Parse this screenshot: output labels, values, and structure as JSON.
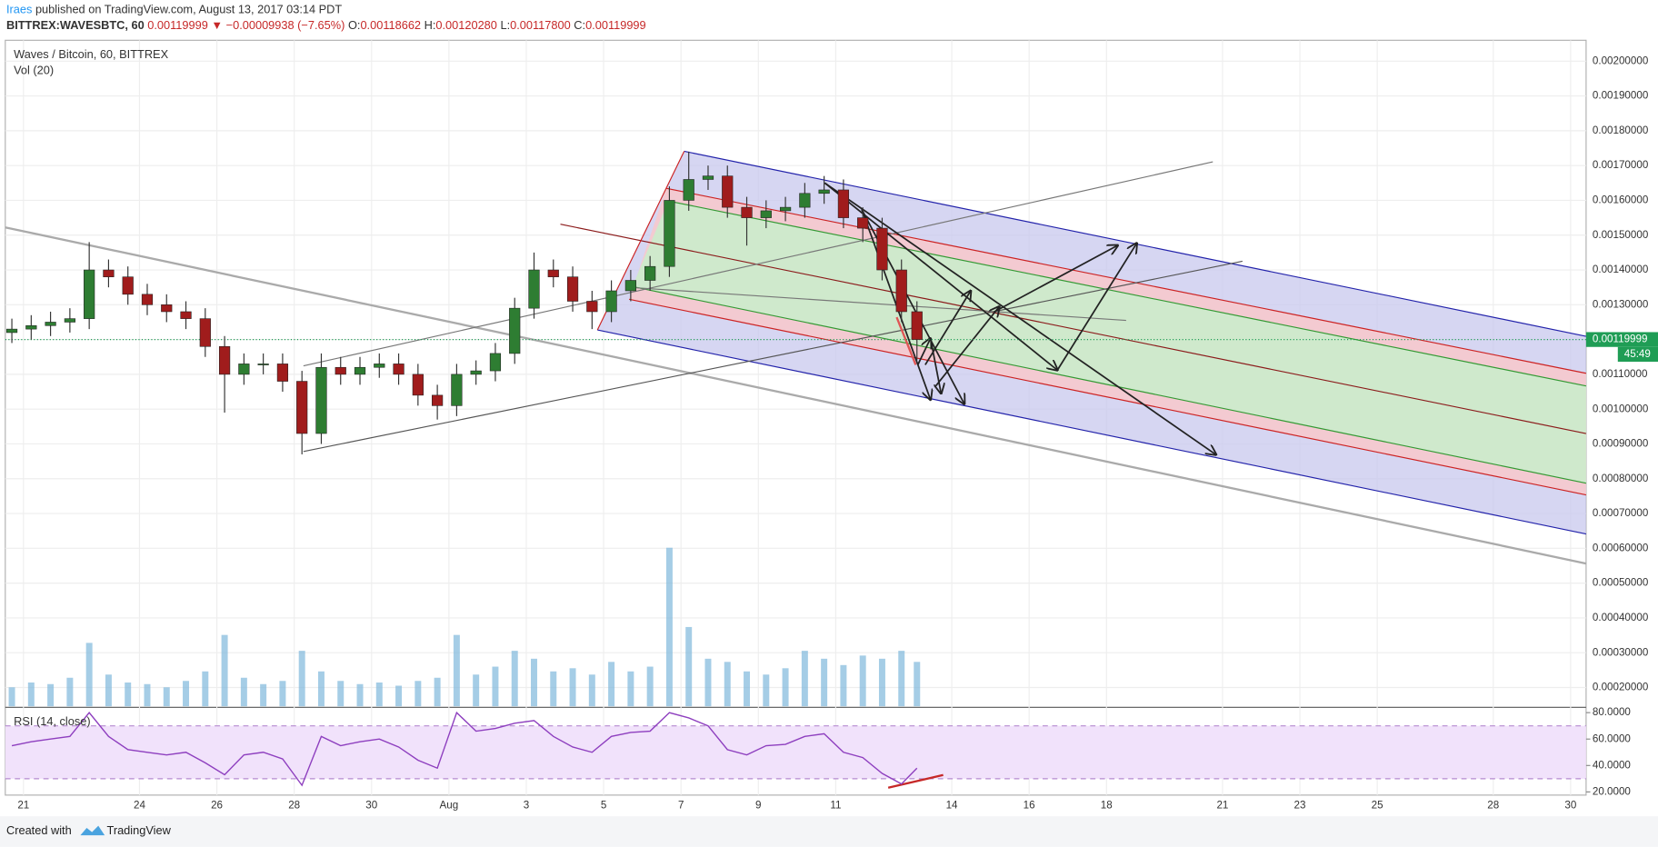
{
  "header": {
    "publisher": "Iraes",
    "published_text": " published on TradingView.com, August 13, 2017 03:14 PDT",
    "symbol": "BITTREX:WAVESBTC, 60",
    "last": "0.00119999",
    "arrow": "▼",
    "change": "−0.00009938 (−7.65%)",
    "o_label": "O:",
    "open": "0.00118662",
    "h_label": "H:",
    "high": "0.00120280",
    "l_label": "L:",
    "low": "0.00117800",
    "c_label": "C:",
    "close": "0.00119999"
  },
  "chart_data": {
    "type": "candlestick",
    "title": "Waves / Bitcoin, 60, BITTREX",
    "volume_label": "Vol (20)",
    "up_color": "#2e7d32",
    "down_color": "#a01c1c",
    "volume_color": "#7fb8dc",
    "x": [
      20.7,
      21.2,
      21.7,
      22.2,
      22.7,
      23.2,
      23.7,
      24.2,
      24.7,
      25.2,
      25.7,
      26.2,
      26.7,
      27.2,
      27.7,
      28.2,
      28.7,
      29.2,
      29.7,
      30.2,
      30.7,
      31.2,
      31.7,
      32.2,
      32.7,
      33.2,
      33.7,
      34.2,
      34.7,
      35.2,
      35.7,
      36.2,
      36.7,
      37.2,
      37.7,
      38.2,
      38.7,
      39.2,
      39.7,
      40.2,
      40.7,
      41.2,
      41.7,
      42.2,
      42.7,
      43.2,
      43.7,
      44.1
    ],
    "open": [
      0.00122,
      0.00123,
      0.00124,
      0.00125,
      0.00126,
      0.0014,
      0.00138,
      0.00133,
      0.0013,
      0.00128,
      0.00126,
      0.00118,
      0.0011,
      0.00113,
      0.00113,
      0.00108,
      0.00093,
      0.00112,
      0.0011,
      0.00112,
      0.00113,
      0.0011,
      0.00104,
      0.00101,
      0.0011,
      0.00111,
      0.00116,
      0.00129,
      0.0014,
      0.00138,
      0.00131,
      0.00128,
      0.00134,
      0.00137,
      0.00141,
      0.0016,
      0.00166,
      0.00167,
      0.00158,
      0.00155,
      0.00157,
      0.00158,
      0.00162,
      0.00163,
      0.00155,
      0.00152,
      0.0014,
      0.00128
    ],
    "high": [
      0.00126,
      0.00127,
      0.00128,
      0.00129,
      0.00148,
      0.00143,
      0.00141,
      0.00136,
      0.00133,
      0.00131,
      0.00129,
      0.00121,
      0.00116,
      0.00116,
      0.00116,
      0.00111,
      0.00116,
      0.00115,
      0.00115,
      0.00116,
      0.00116,
      0.00113,
      0.00107,
      0.00113,
      0.00114,
      0.00119,
      0.00132,
      0.00145,
      0.00143,
      0.00141,
      0.00134,
      0.00137,
      0.0014,
      0.00144,
      0.00164,
      0.00174,
      0.0017,
      0.0017,
      0.00161,
      0.0016,
      0.00161,
      0.00165,
      0.00167,
      0.00166,
      0.00158,
      0.00155,
      0.00143,
      0.00131
    ],
    "low": [
      0.00119,
      0.0012,
      0.00121,
      0.00122,
      0.00123,
      0.00135,
      0.0013,
      0.00127,
      0.00125,
      0.00123,
      0.00115,
      0.00099,
      0.00107,
      0.0011,
      0.00105,
      0.00087,
      0.0009,
      0.00107,
      0.00107,
      0.00109,
      0.00107,
      0.00101,
      0.00097,
      0.00098,
      0.00107,
      0.00108,
      0.00113,
      0.00126,
      0.00135,
      0.00128,
      0.00123,
      0.00125,
      0.00131,
      0.00134,
      0.00138,
      0.00157,
      0.00163,
      0.00155,
      0.00147,
      0.00152,
      0.00154,
      0.00155,
      0.00159,
      0.00152,
      0.00148,
      0.00137,
      0.00125,
      0.00114
    ],
    "close": [
      0.00123,
      0.00124,
      0.00125,
      0.00126,
      0.0014,
      0.00138,
      0.00133,
      0.0013,
      0.00128,
      0.00126,
      0.00118,
      0.0011,
      0.00113,
      0.00113,
      0.00108,
      0.00093,
      0.00112,
      0.0011,
      0.00112,
      0.00113,
      0.0011,
      0.00104,
      0.00101,
      0.0011,
      0.00111,
      0.00116,
      0.00129,
      0.0014,
      0.00138,
      0.00131,
      0.00128,
      0.00134,
      0.00137,
      0.00141,
      0.0016,
      0.00166,
      0.00167,
      0.00158,
      0.00155,
      0.00157,
      0.00158,
      0.00162,
      0.00163,
      0.00155,
      0.00152,
      0.0014,
      0.00128,
      0.0012
    ],
    "volume": [
      12,
      15,
      14,
      18,
      40,
      20,
      15,
      14,
      12,
      16,
      22,
      45,
      18,
      14,
      16,
      35,
      22,
      16,
      14,
      15,
      13,
      16,
      18,
      45,
      20,
      25,
      35,
      30,
      22,
      24,
      20,
      28,
      22,
      25,
      100,
      50,
      30,
      28,
      22,
      20,
      24,
      35,
      30,
      26,
      32,
      30,
      35,
      28
    ],
    "xlim": [
      20.53,
      61.4
    ],
    "xticks": [
      21,
      24,
      26,
      28,
      30,
      {
        "value": 32,
        "label": "Aug"
      },
      {
        "value": 34,
        "label": "3"
      },
      {
        "value": 36,
        "label": "5"
      },
      {
        "value": 38,
        "label": "7"
      },
      {
        "value": 40,
        "label": "9"
      },
      {
        "value": 42,
        "label": "11"
      },
      {
        "value": 45,
        "label": "14"
      },
      {
        "value": 47,
        "label": "16"
      },
      {
        "value": 49,
        "label": "18"
      },
      {
        "value": 52,
        "label": "21"
      },
      {
        "value": 54,
        "label": "23"
      },
      {
        "value": 56,
        "label": "25"
      },
      {
        "value": 59,
        "label": "28"
      },
      {
        "value": 61,
        "label": "30"
      }
    ],
    "ylim": [
      0.000146,
      0.00206
    ],
    "yticks": [
      {
        "value": 0.0002,
        "label": "0.00020000"
      },
      {
        "value": 0.0003,
        "label": "0.00030000"
      },
      {
        "value": 0.0004,
        "label": "0.00040000"
      },
      {
        "value": 0.0005,
        "label": "0.00050000"
      },
      {
        "value": 0.0006,
        "label": "0.00060000"
      },
      {
        "value": 0.0007,
        "label": "0.00070000"
      },
      {
        "value": 0.0008,
        "label": "0.00080000"
      },
      {
        "value": 0.0009,
        "label": "0.00090000"
      },
      {
        "value": 0.001,
        "label": "0.00100000"
      },
      {
        "value": 0.0011,
        "label": "0.00110000"
      },
      {
        "value": 0.0012,
        "label": "0.00120000"
      },
      {
        "value": 0.0013,
        "label": "0.00130000"
      },
      {
        "value": 0.0014,
        "label": "0.00140000"
      },
      {
        "value": 0.0015,
        "label": "0.00150000"
      },
      {
        "value": 0.0016,
        "label": "0.00160000"
      },
      {
        "value": 0.0017,
        "label": "0.00170000"
      },
      {
        "value": 0.0018,
        "label": "0.00180000"
      },
      {
        "value": 0.0019,
        "label": "0.00190000"
      },
      {
        "value": 0.002,
        "label": "0.00200000"
      }
    ],
    "grid": true,
    "last_price": {
      "value": 0.00119999,
      "label": "0.00119999"
    },
    "countdown": "45:49",
    "last_color": "#1f9d55",
    "rsi": {
      "title": "RSI (14, close)",
      "color": "#8e3fbf",
      "values": [
        55,
        58,
        60,
        62,
        80,
        62,
        52,
        50,
        48,
        50,
        42,
        33,
        48,
        50,
        45,
        25,
        62,
        55,
        58,
        60,
        54,
        44,
        38,
        80,
        66,
        68,
        72,
        74,
        62,
        54,
        50,
        62,
        65,
        66,
        80,
        76,
        70,
        52,
        48,
        55,
        56,
        62,
        64,
        50,
        46,
        34,
        26,
        38
      ],
      "ylim": [
        17.6,
        83.2
      ],
      "yticks": [
        {
          "value": 20,
          "label": "20.0000"
        },
        {
          "value": 40,
          "label": "40.0000"
        },
        {
          "value": 60,
          "label": "60.0000"
        },
        {
          "value": 80,
          "label": "80.0000"
        }
      ],
      "band": [
        30,
        70
      ]
    }
  },
  "footer": {
    "created": "Created with",
    "brand": "TradingView"
  }
}
